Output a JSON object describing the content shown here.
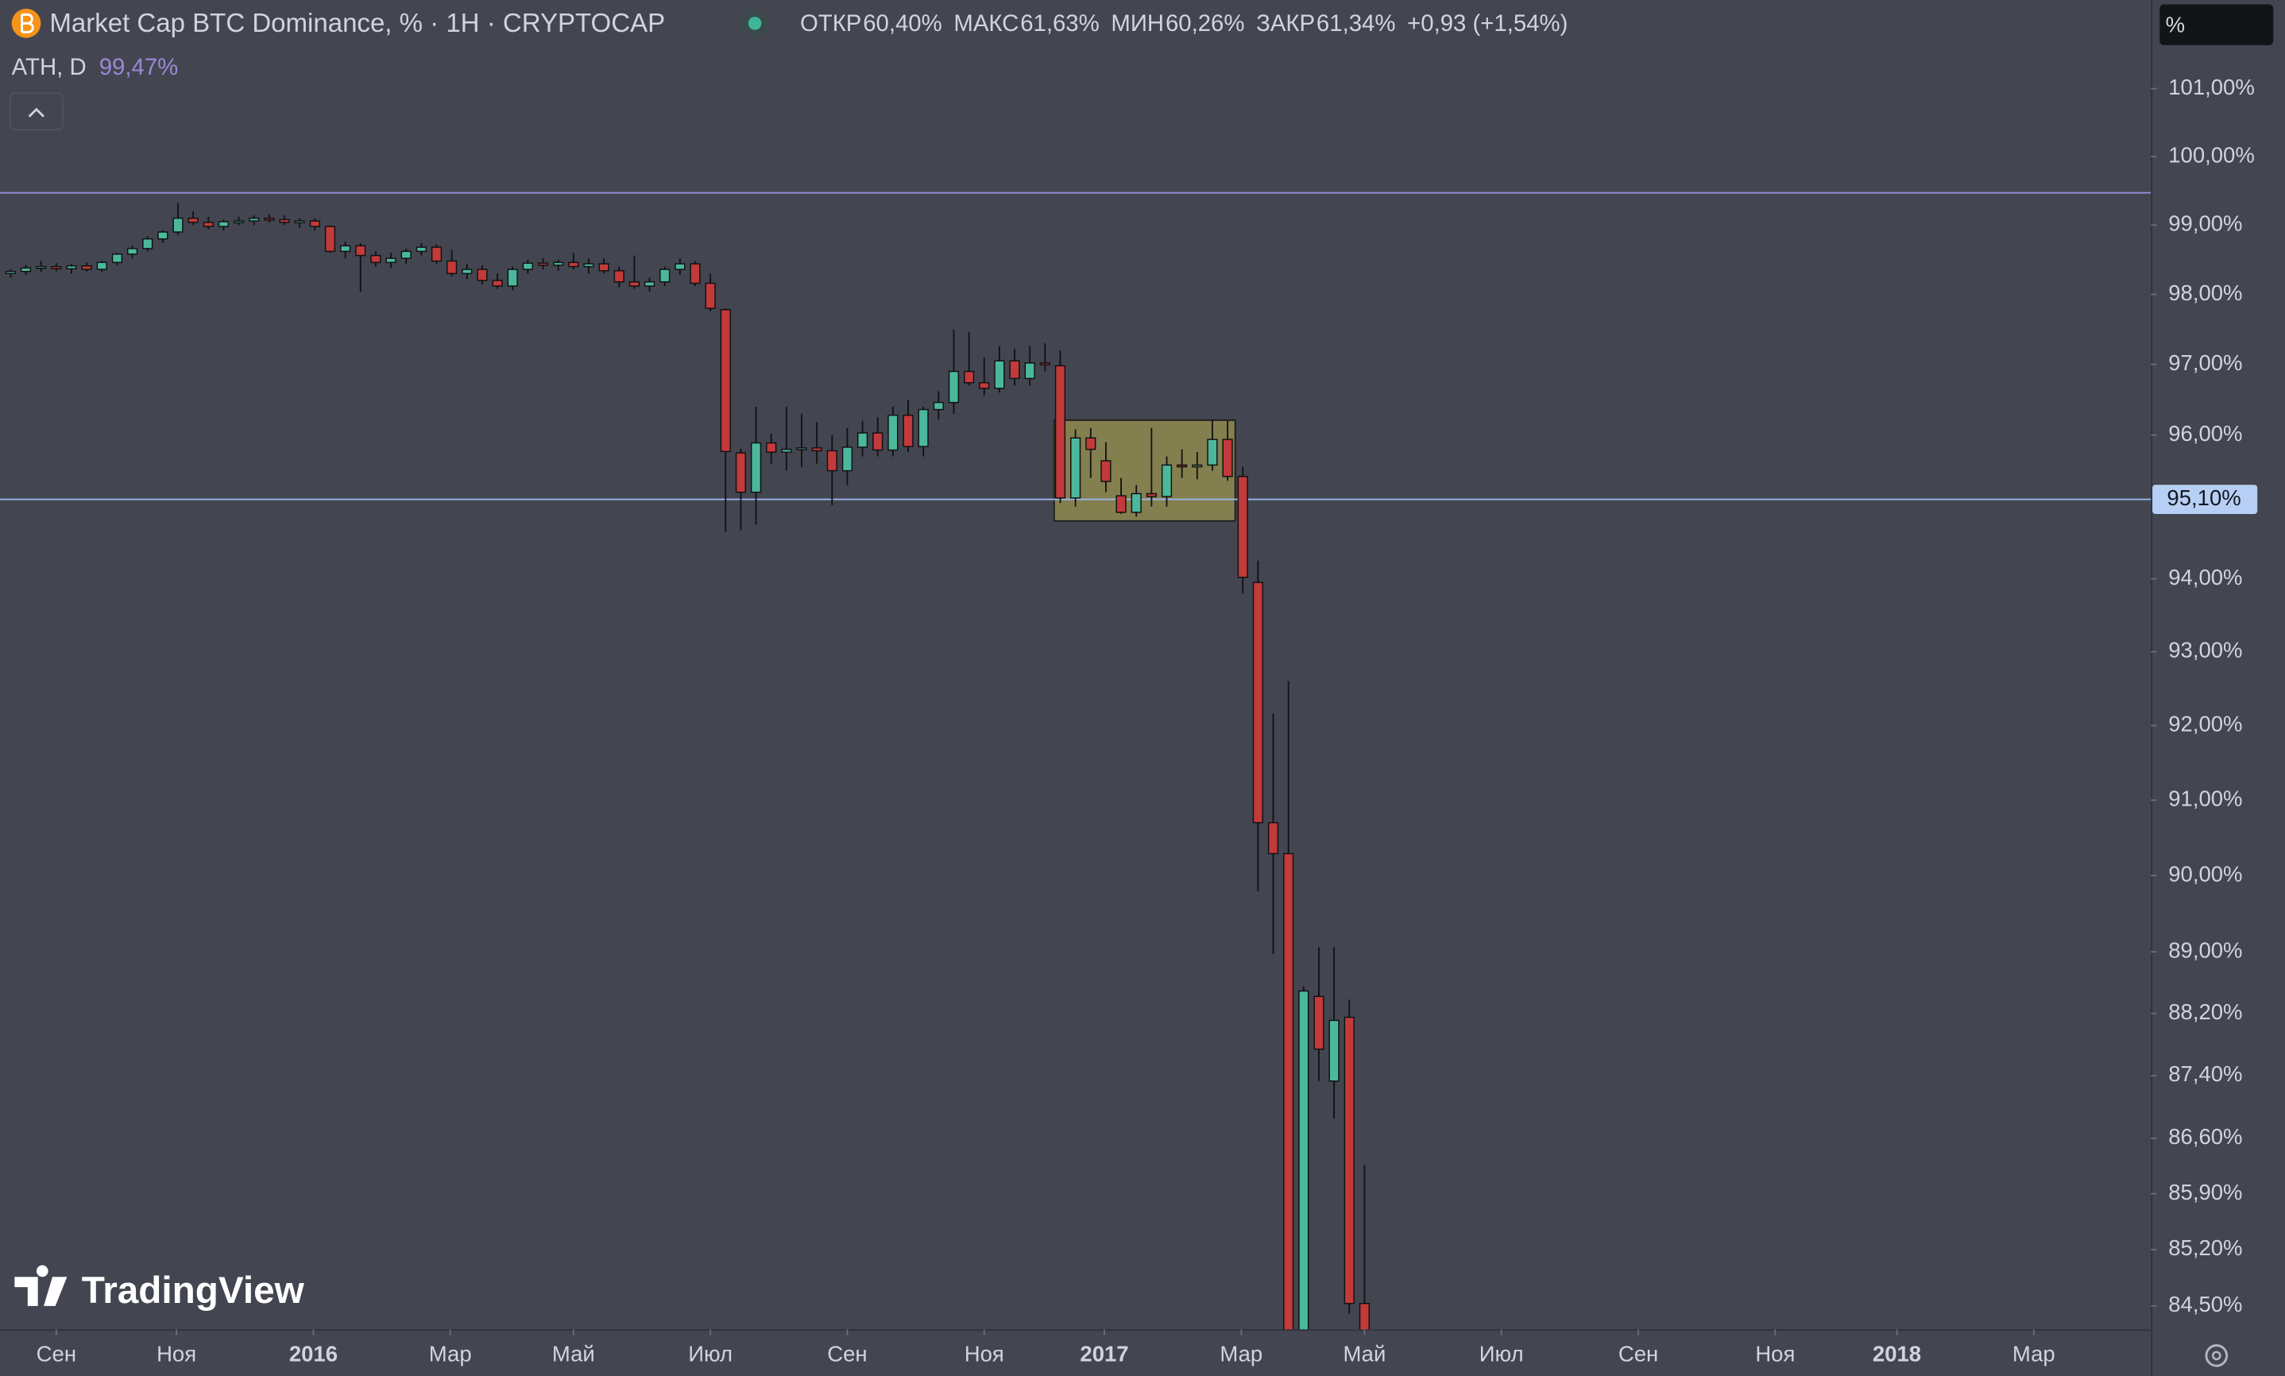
{
  "header": {
    "title": "Market Cap BTC Dominance, % · 1H · CRYPTOCAP",
    "ohlc": [
      {
        "label": "ОТКР",
        "value": "60,40%"
      },
      {
        "label": "МАКС",
        "value": "61,63%"
      },
      {
        "label": "МИН",
        "value": "60,26%"
      },
      {
        "label": "ЗАКР",
        "value": "61,34%"
      }
    ],
    "change": "+0,93 (+1,54%)",
    "scale_mode": "%",
    "logo": "TradingView"
  },
  "chart_data": {
    "type": "candlestick",
    "log_scale": true,
    "up_color": "#4bb89c",
    "down_color": "#c23a3a",
    "open": [
      98.3,
      98.33,
      98.38,
      98.4,
      98.37,
      98.41,
      98.36,
      98.46,
      98.58,
      98.66,
      98.8,
      98.9,
      99.1,
      99.04,
      98.98,
      99.05,
      99.06,
      99.1,
      99.08,
      99.04,
      99.06,
      98.98,
      98.62,
      98.7,
      98.56,
      98.46,
      98.52,
      98.62,
      98.68,
      98.48,
      98.3,
      98.36,
      98.2,
      98.12,
      98.36,
      98.45,
      98.42,
      98.46,
      98.4,
      98.44,
      98.34,
      98.18,
      98.12,
      98.18,
      98.36,
      98.44,
      98.16,
      97.78,
      95.75,
      95.2,
      95.89,
      95.76,
      95.8,
      95.82,
      95.78,
      95.5,
      95.83,
      96.03,
      95.79,
      96.28,
      95.84,
      96.36,
      96.46,
      96.9,
      96.74,
      96.66,
      97.05,
      96.8,
      97.02,
      96.98,
      95.12,
      95.96,
      95.64,
      95.15,
      94.92,
      95.18,
      95.14,
      95.58,
      95.56,
      95.58,
      95.94,
      95.42,
      93.95,
      90.7,
      90.29,
      84.0,
      88.42,
      87.33,
      88.15,
      84.53
    ],
    "high": [
      98.36,
      98.42,
      98.48,
      98.45,
      98.44,
      98.46,
      98.48,
      98.6,
      98.7,
      98.84,
      98.92,
      99.32,
      99.2,
      99.12,
      99.08,
      99.12,
      99.14,
      99.16,
      99.14,
      99.1,
      99.1,
      99.0,
      98.76,
      98.74,
      98.62,
      98.6,
      98.66,
      98.74,
      98.72,
      98.64,
      98.44,
      98.42,
      98.3,
      98.4,
      98.5,
      98.52,
      98.5,
      98.6,
      98.52,
      98.52,
      98.4,
      98.56,
      98.24,
      98.4,
      98.52,
      98.48,
      98.3,
      97.8,
      95.81,
      96.4,
      96.02,
      96.4,
      96.3,
      96.18,
      96.0,
      96.1,
      96.2,
      96.25,
      96.4,
      96.5,
      96.4,
      96.62,
      97.5,
      97.46,
      97.1,
      97.26,
      97.22,
      97.26,
      97.3,
      97.2,
      96.08,
      96.1,
      95.9,
      95.4,
      95.3,
      96.1,
      95.7,
      95.8,
      95.76,
      96.22,
      96.2,
      95.56,
      94.25,
      92.16,
      92.6,
      88.55,
      89.06,
      89.06,
      88.38,
      86.26
    ],
    "low": [
      98.24,
      98.28,
      98.32,
      98.33,
      98.3,
      98.33,
      98.32,
      98.42,
      98.52,
      98.62,
      98.74,
      98.86,
      99.0,
      98.94,
      98.92,
      99.0,
      99.0,
      99.04,
      99.0,
      98.96,
      98.92,
      98.6,
      98.52,
      98.04,
      98.4,
      98.38,
      98.44,
      98.56,
      98.44,
      98.26,
      98.22,
      98.14,
      98.08,
      98.06,
      98.3,
      98.36,
      98.34,
      98.36,
      98.3,
      98.3,
      98.1,
      98.08,
      98.04,
      98.12,
      98.28,
      98.12,
      97.76,
      94.65,
      94.67,
      94.75,
      95.6,
      95.5,
      95.55,
      95.6,
      95.02,
      95.3,
      95.7,
      95.7,
      95.7,
      95.76,
      95.7,
      96.22,
      96.3,
      96.7,
      96.56,
      96.6,
      96.7,
      96.7,
      96.9,
      95.05,
      95.0,
      95.4,
      95.2,
      94.9,
      94.86,
      95.0,
      95.0,
      95.4,
      95.38,
      95.5,
      95.36,
      93.8,
      89.79,
      88.97,
      83.5,
      83.6,
      87.33,
      86.85,
      84.4,
      83.8
    ],
    "close": [
      98.33,
      98.38,
      98.4,
      98.37,
      98.41,
      98.36,
      98.46,
      98.58,
      98.66,
      98.8,
      98.9,
      99.1,
      99.04,
      98.98,
      99.05,
      99.06,
      99.1,
      99.08,
      99.04,
      99.06,
      98.98,
      98.62,
      98.7,
      98.56,
      98.46,
      98.52,
      98.62,
      98.68,
      98.48,
      98.3,
      98.36,
      98.2,
      98.12,
      98.36,
      98.45,
      98.42,
      98.46,
      98.4,
      98.44,
      98.34,
      98.18,
      98.12,
      98.18,
      98.36,
      98.44,
      98.16,
      97.8,
      95.77,
      95.2,
      95.89,
      95.76,
      95.8,
      95.82,
      95.78,
      95.5,
      95.83,
      96.03,
      95.79,
      96.28,
      95.84,
      96.36,
      96.46,
      96.9,
      96.74,
      96.66,
      97.05,
      96.8,
      97.02,
      97.0,
      95.12,
      95.96,
      95.8,
      95.35,
      94.92,
      95.18,
      95.14,
      95.58,
      95.56,
      95.58,
      95.94,
      95.42,
      94.02,
      90.7,
      90.29,
      84.0,
      88.49,
      87.74,
      88.11,
      84.53,
      84.0
    ],
    "xlim": [
      -0.7,
      140.7
    ],
    "xticks": [
      {
        "value": 3.0,
        "label": "Сен"
      },
      {
        "value": 10.9,
        "label": "Ноя"
      },
      {
        "value": 19.9,
        "label": "2016"
      },
      {
        "value": 28.9,
        "label": "Мар"
      },
      {
        "value": 37.0,
        "label": "Май"
      },
      {
        "value": 46.0,
        "label": "Июл"
      },
      {
        "value": 55.0,
        "label": "Сен"
      },
      {
        "value": 64.0,
        "label": "Ноя"
      },
      {
        "value": 71.9,
        "label": "2017"
      },
      {
        "value": 80.9,
        "label": "Мар"
      },
      {
        "value": 89.0,
        "label": "Май"
      },
      {
        "value": 98.0,
        "label": "Июл"
      },
      {
        "value": 107.0,
        "label": "Сен"
      },
      {
        "value": 116.0,
        "label": "Ноя"
      },
      {
        "value": 124.0,
        "label": "2018"
      },
      {
        "value": 133.0,
        "label": "Мар"
      }
    ],
    "ylim": [
      84.21,
      102.32
    ],
    "yticks": [
      {
        "value": 101,
        "label": "101,00%"
      },
      {
        "value": 100,
        "label": "100,00%"
      },
      {
        "value": 99,
        "label": "99,00%"
      },
      {
        "value": 98,
        "label": "98,00%"
      },
      {
        "value": 97,
        "label": "97,00%"
      },
      {
        "value": 96,
        "label": "96,00%"
      },
      {
        "value": 94,
        "label": "94,00%"
      },
      {
        "value": 93,
        "label": "93,00%"
      },
      {
        "value": 92,
        "label": "92,00%"
      },
      {
        "value": 91,
        "label": "91,00%"
      },
      {
        "value": 90,
        "label": "90,00%"
      },
      {
        "value": 89,
        "label": "89,00%"
      },
      {
        "value": 88.2,
        "label": "88,20%"
      },
      {
        "value": 87.4,
        "label": "87,40%"
      },
      {
        "value": 86.6,
        "label": "86,60%"
      },
      {
        "value": 85.9,
        "label": "85,90%"
      },
      {
        "value": 85.2,
        "label": "85,20%"
      },
      {
        "value": 84.5,
        "label": "84,50%"
      }
    ],
    "ath": {
      "name": "ATH, D",
      "value": 99.47,
      "value_label": "99,47%",
      "color": "#9b87d6"
    },
    "price_line": {
      "value": 95.1,
      "label": "95,10%",
      "color": "#9ab7e8"
    },
    "box": {
      "xlim": [
        68.6,
        80.5
      ],
      "ylim": [
        94.8,
        96.21
      ],
      "color": "#8f8a4f"
    }
  }
}
